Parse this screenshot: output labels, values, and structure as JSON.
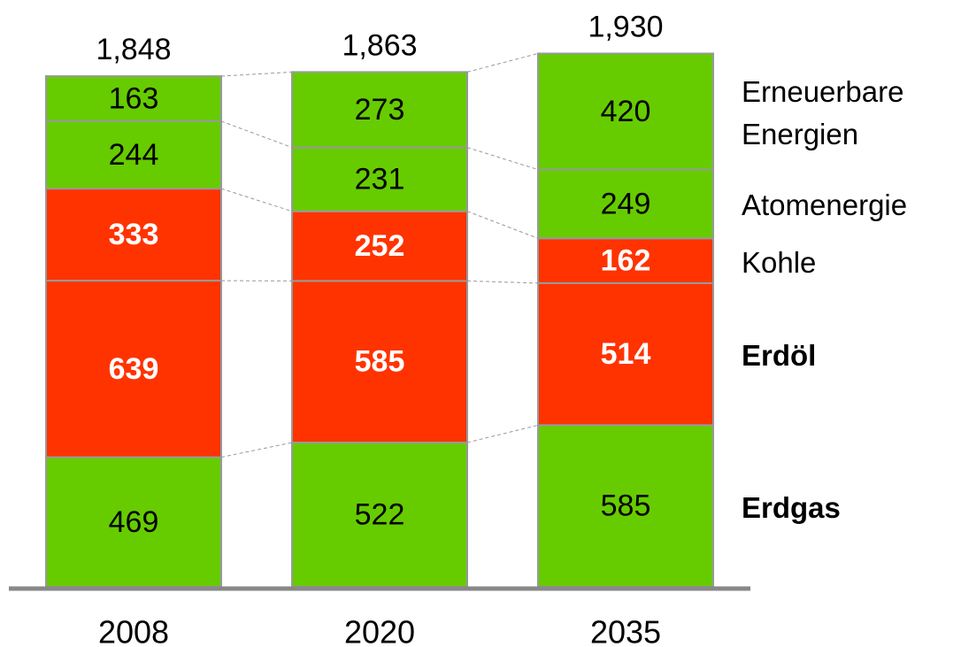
{
  "chart_data": {
    "type": "stacked_bar",
    "categories": [
      "2008",
      "2020",
      "2035"
    ],
    "series": [
      {
        "name": "Erdgas",
        "color": "#66cc00",
        "values": [
          469,
          522,
          585
        ]
      },
      {
        "name": "Erdöl",
        "color": "#ff3300",
        "values": [
          639,
          585,
          514
        ]
      },
      {
        "name": "Kohle",
        "color": "#ff3300",
        "values": [
          333,
          252,
          162
        ]
      },
      {
        "name": "Atomenergie",
        "color": "#66cc00",
        "values": [
          244,
          231,
          249
        ]
      },
      {
        "name": "Erneuerbare Energien",
        "color": "#66cc00",
        "values": [
          163,
          273,
          420
        ]
      }
    ],
    "totals": {
      "values": [
        1848,
        1863,
        1930
      ],
      "value_labels": [
        "1,848",
        "1,863",
        "1,930"
      ]
    }
  }
}
